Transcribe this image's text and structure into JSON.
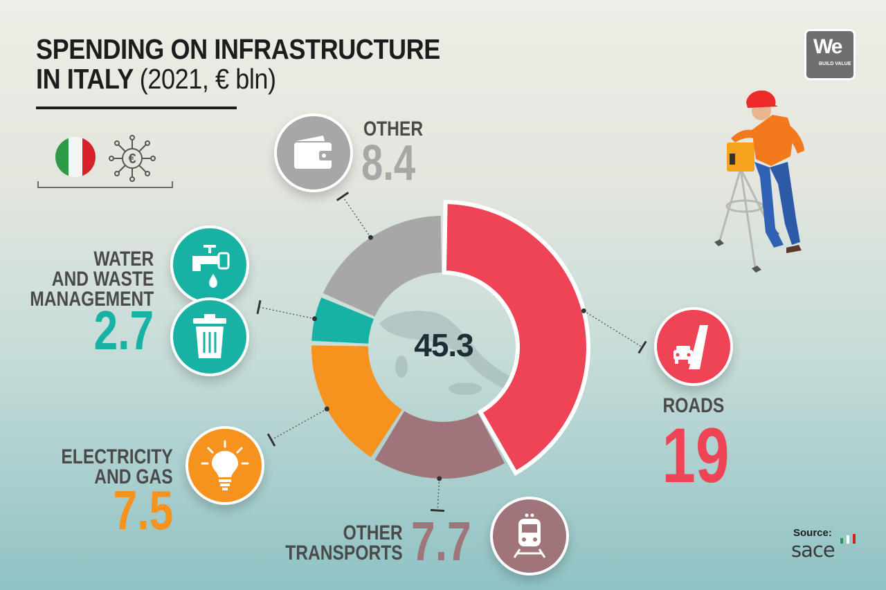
{
  "title": {
    "line1": "SPENDING ON INFRASTRUCTURE",
    "line2_bold": "IN ITALY",
    "line2_light": "(2021, € bln)"
  },
  "logo": {
    "text": "We",
    "subtext": "BUILD VALUE"
  },
  "center_label": "45.3",
  "source": {
    "label": "Source:",
    "name": "sace"
  },
  "chart_data": {
    "type": "donut",
    "title": "SPENDING ON INFRASTRUCTURE IN ITALY (2021, € bln)",
    "total": 45.3,
    "unit": "€ bln",
    "categories": [
      "ROADS",
      "OTHER TRANSPORTS",
      "ELECTRICITY AND GAS",
      "WATER AND WASTE MANAGEMENT",
      "OTHER"
    ],
    "values": [
      19,
      7.7,
      7.5,
      2.7,
      8.4
    ],
    "value_labels": [
      "19",
      "7.7",
      "7.5",
      "2.7",
      "8.4"
    ],
    "colors": [
      "#ee4455",
      "#a0757a",
      "#f6921e",
      "#18b2a5",
      "#a7a7a7"
    ],
    "label_lines": [
      [
        "ROADS"
      ],
      [
        "OTHER",
        "TRANSPORTS"
      ],
      [
        "ELECTRICITY",
        "AND GAS"
      ],
      [
        "WATER",
        "AND WASTE",
        "MANAGEMENT"
      ],
      [
        "OTHER"
      ]
    ],
    "icons": [
      "cars-road-icon",
      "train-icon",
      "light-bulb-icon",
      "water-tap-icon",
      "wallet-icon"
    ],
    "extra_icons": [
      "trash-bin-icon"
    ],
    "highlighted": "ROADS"
  },
  "decorations": [
    "italy-flag-icon",
    "euro-network-icon",
    "surveyor-illustration",
    "italy-map-silhouette"
  ]
}
